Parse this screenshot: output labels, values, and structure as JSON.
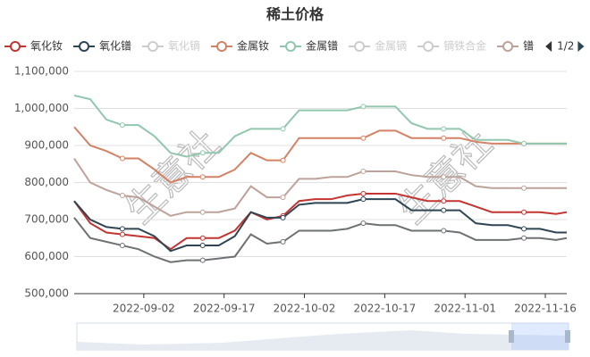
{
  "chart_data": {
    "type": "line",
    "title": "稀土价格",
    "watermark": "生意社",
    "legend_page": "1/2",
    "x": [
      "2022-08-20",
      "2022-08-23",
      "2022-08-26",
      "2022-08-29",
      "2022-09-01",
      "2022-09-04",
      "2022-09-07",
      "2022-09-10",
      "2022-09-13",
      "2022-09-16",
      "2022-09-19",
      "2022-09-22",
      "2022-09-25",
      "2022-09-28",
      "2022-10-01",
      "2022-10-04",
      "2022-10-07",
      "2022-10-10",
      "2022-10-13",
      "2022-10-16",
      "2022-10-19",
      "2022-10-22",
      "2022-10-25",
      "2022-10-28",
      "2022-10-31",
      "2022-11-03",
      "2022-11-06",
      "2022-11-09",
      "2022-11-12",
      "2022-11-15",
      "2022-11-18",
      "2022-11-20"
    ],
    "xlim": [
      "2022-08-20",
      "2022-11-20"
    ],
    "xticks": [
      "2022-09-02",
      "2022-09-17",
      "2022-10-02",
      "2022-10-17",
      "2022-11-01",
      "2022-11-16"
    ],
    "ylim": [
      500000,
      1100000
    ],
    "yticks": [
      {
        "value": 500000,
        "label": "500,000"
      },
      {
        "value": 600000,
        "label": "600,000"
      },
      {
        "value": 700000,
        "label": "700,000"
      },
      {
        "value": 800000,
        "label": "800,000"
      },
      {
        "value": 900000,
        "label": "900,000"
      },
      {
        "value": 1000000,
        "label": "1,000,000"
      },
      {
        "value": 1100000,
        "label": "1,100,000"
      }
    ],
    "grid": true,
    "series": [
      {
        "name": "氧化钕",
        "color": "#c23531",
        "visible": true,
        "values": [
          750000,
          690000,
          665000,
          660000,
          655000,
          650000,
          620000,
          650000,
          650000,
          650000,
          670000,
          720000,
          700000,
          710000,
          750000,
          755000,
          755000,
          765000,
          770000,
          770000,
          770000,
          760000,
          750000,
          750000,
          750000,
          735000,
          720000,
          720000,
          720000,
          720000,
          715000,
          720000
        ]
      },
      {
        "name": "氧化镨",
        "color": "#2f4554",
        "visible": true,
        "values": [
          750000,
          700000,
          680000,
          675000,
          675000,
          655000,
          615000,
          630000,
          630000,
          630000,
          655000,
          720000,
          705000,
          705000,
          740000,
          745000,
          745000,
          745000,
          755000,
          755000,
          755000,
          725000,
          725000,
          725000,
          725000,
          690000,
          685000,
          685000,
          675000,
          675000,
          665000,
          665000
        ]
      },
      {
        "name": "氧化镝",
        "color": "#cccccc",
        "visible": false
      },
      {
        "name": "金属钕",
        "color": "#d48265",
        "visible": true,
        "values": [
          950000,
          900000,
          885000,
          865000,
          865000,
          835000,
          800000,
          815000,
          815000,
          815000,
          835000,
          880000,
          860000,
          860000,
          920000,
          920000,
          920000,
          920000,
          920000,
          940000,
          940000,
          920000,
          920000,
          920000,
          920000,
          910000,
          905000,
          905000,
          905000,
          905000,
          905000,
          905000
        ]
      },
      {
        "name": "金属镨",
        "color": "#91c7ae",
        "visible": true,
        "values": [
          1035000,
          1025000,
          970000,
          955000,
          955000,
          925000,
          880000,
          870000,
          880000,
          880000,
          925000,
          945000,
          945000,
          945000,
          995000,
          995000,
          995000,
          995000,
          1005000,
          1005000,
          1005000,
          960000,
          945000,
          945000,
          945000,
          915000,
          915000,
          915000,
          905000,
          905000,
          905000,
          905000
        ]
      },
      {
        "name": "金属镝",
        "color": "#cccccc",
        "visible": false
      },
      {
        "name": "镝铁合金",
        "color": "#cccccc",
        "visible": false
      },
      {
        "name": "镨",
        "color": "#bda29a",
        "visible": true,
        "values": [
          865000,
          800000,
          780000,
          765000,
          760000,
          735000,
          710000,
          720000,
          720000,
          720000,
          730000,
          790000,
          760000,
          760000,
          810000,
          810000,
          815000,
          815000,
          830000,
          830000,
          830000,
          820000,
          815000,
          815000,
          815000,
          790000,
          785000,
          785000,
          785000,
          785000,
          785000,
          785000
        ]
      },
      {
        "color": "#6e7074",
        "visible": true,
        "values": [
          705000,
          650000,
          640000,
          630000,
          620000,
          600000,
          585000,
          590000,
          590000,
          595000,
          600000,
          660000,
          635000,
          640000,
          670000,
          670000,
          670000,
          675000,
          690000,
          685000,
          685000,
          670000,
          670000,
          670000,
          665000,
          645000,
          645000,
          645000,
          650000,
          650000,
          645000,
          650000
        ]
      }
    ]
  }
}
